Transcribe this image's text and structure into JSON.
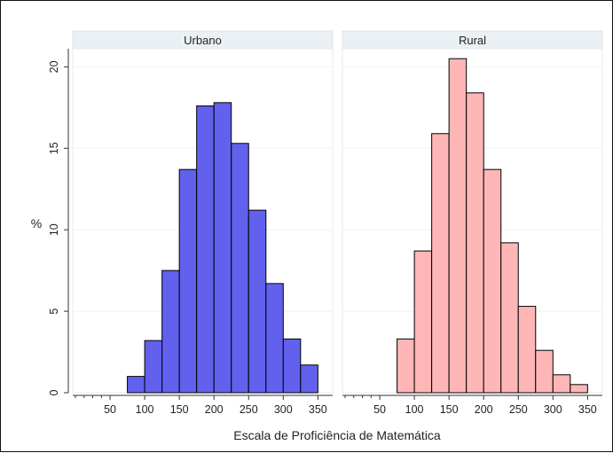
{
  "chart_data": {
    "type": "bar",
    "layout": "faceted-histogram",
    "ylabel": "%",
    "xlabel": "Escala de Proficiência de Matemática",
    "xlim": [
      0,
      360
    ],
    "ylim": [
      0,
      21
    ],
    "x_ticks": [
      50,
      100,
      150,
      200,
      250,
      300,
      350
    ],
    "y_ticks": [
      0,
      5,
      10,
      15,
      20
    ],
    "bin_edges": [
      75,
      100,
      125,
      150,
      175,
      200,
      225,
      250,
      275,
      300,
      325,
      350
    ],
    "grid": true,
    "panels": [
      {
        "title": "Urbano",
        "color": "#6161ee",
        "values": [
          1.0,
          3.2,
          7.5,
          13.7,
          17.6,
          17.8,
          15.3,
          11.2,
          6.7,
          3.3,
          1.7
        ]
      },
      {
        "title": "Rural",
        "color": "#ffb6b6",
        "values": [
          3.3,
          8.7,
          15.9,
          20.5,
          18.4,
          13.7,
          9.2,
          5.3,
          2.6,
          1.1,
          0.5
        ]
      }
    ]
  }
}
